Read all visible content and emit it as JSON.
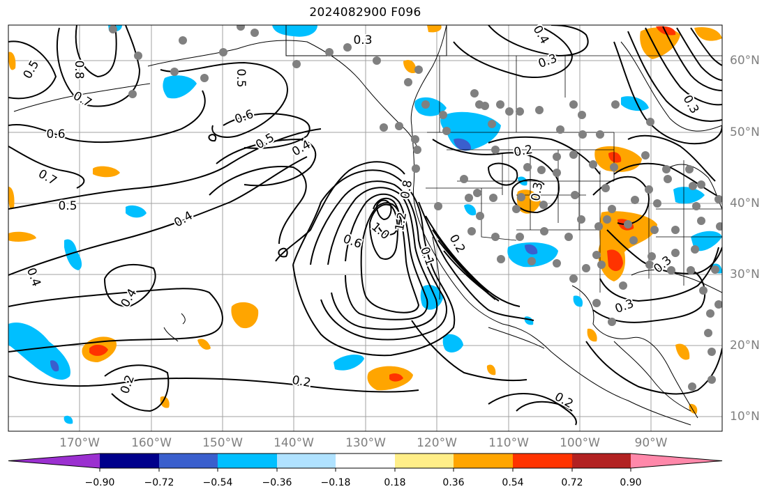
{
  "title": "2024082900 F096",
  "map": {
    "lon_labels": [
      "170°W",
      "160°W",
      "150°W",
      "140°W",
      "130°W",
      "120°W",
      "110°W",
      "100°W",
      "90°W"
    ],
    "lat_labels": [
      "60°N",
      "50°N",
      "40°N",
      "30°N",
      "20°N",
      "10°N"
    ],
    "contour_labels": [
      "0.5",
      "0.8",
      "0.7",
      "0.6",
      "0.7",
      "0.5",
      "0.4",
      "0.4",
      "0.4",
      "0.2",
      "0.3",
      "0.3",
      "0.4",
      "0.5",
      "0.5",
      "0.6",
      "0.4",
      "0.6",
      "1.0",
      "1.2",
      "0.8",
      "0.2",
      "0.1",
      "0.3",
      "0.3",
      "0.2",
      "0.3",
      "0.2",
      "0.3",
      "0.2"
    ]
  },
  "colorbar": {
    "colors": [
      "#9b30d0",
      "#00008b",
      "#3a5fcd",
      "#00bfff",
      "#b0e2ff",
      "#ffffff",
      "#ffee88",
      "#ffa500",
      "#ff3300",
      "#b22222",
      "#ff88aa"
    ],
    "tick_labels": [
      "−0.90",
      "−0.72",
      "−0.54",
      "−0.36",
      "−0.18",
      "0.18",
      "0.36",
      "0.54",
      "0.72",
      "0.90"
    ]
  },
  "colors": {
    "contour": "#000000",
    "grid": "#9a9a9a",
    "station": "#808080"
  }
}
